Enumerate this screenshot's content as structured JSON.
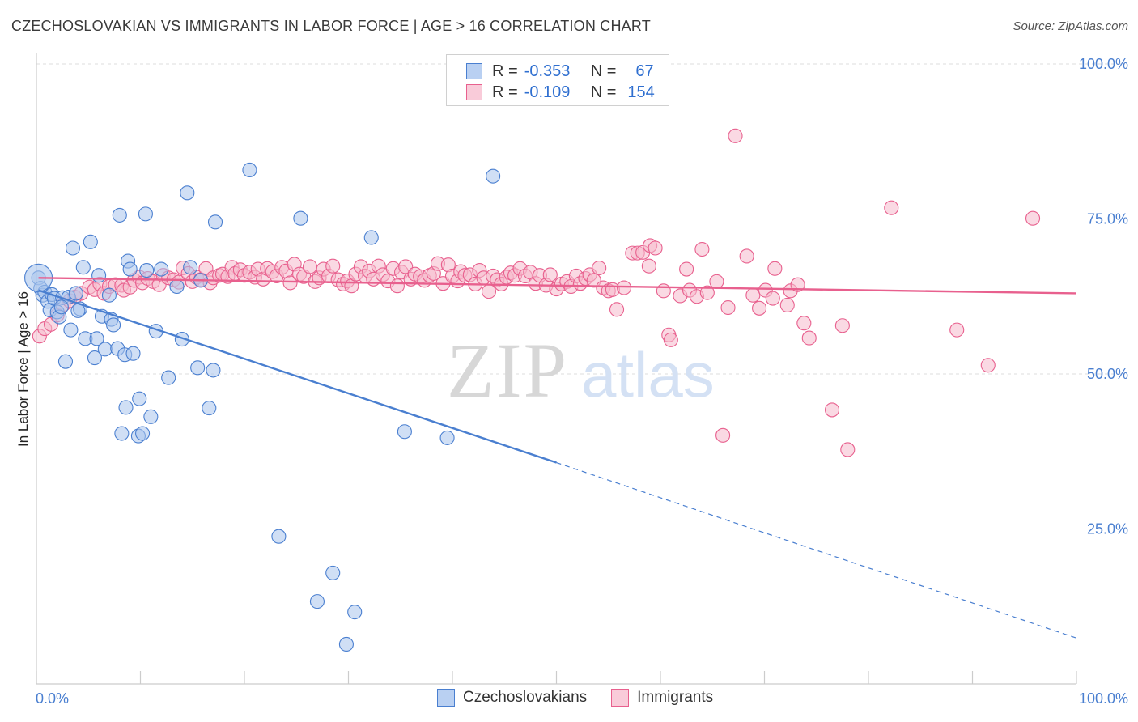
{
  "header": {
    "title": "CZECHOSLOVAKIAN VS IMMIGRANTS IN LABOR FORCE | AGE > 16 CORRELATION CHART",
    "source": "Source: ZipAtlas.com"
  },
  "legend_top": {
    "rows": [
      {
        "r_label": "R =",
        "r_value": "-0.353",
        "n_label": "N =",
        "n_value": "67"
      },
      {
        "r_label": "R =",
        "r_value": "-0.109",
        "n_label": "N =",
        "n_value": "154"
      }
    ]
  },
  "watermark": {
    "zip": "ZIP",
    "atlas": "atlas"
  },
  "colors": {
    "blue": "#4a7fd0",
    "blue_fill": "#a9c4ec",
    "pink": "#e8608e",
    "pink_fill": "#f6b9cc",
    "grid": "#dddddd"
  },
  "chart_data": {
    "type": "scatter",
    "title": "CZECHOSLOVAKIAN VS IMMIGRANTS IN LABOR FORCE | AGE > 16 CORRELATION CHART",
    "xlabel": "",
    "ylabel": "In Labor Force | Age > 16",
    "xlim": [
      0,
      100
    ],
    "ylim": [
      0,
      100
    ],
    "x_tick_labels": [
      "0.0%",
      "100.0%"
    ],
    "y_tick_labels": [
      "25.0%",
      "50.0%",
      "75.0%",
      "100.0%"
    ],
    "y_ticks": [
      25,
      50,
      75,
      100
    ],
    "grid": true,
    "legend_position": "bottom",
    "series": [
      {
        "name": "Czechoslovakians",
        "color": "#4a7fd0",
        "trend": {
          "x_start": 0.2,
          "y_start": 63.5,
          "x_end": 50.0,
          "y_end": 35.7,
          "dashed_x_end": 100.0,
          "dashed_y_end": 7.4
        },
        "points": [
          [
            0.2,
            65.5
          ],
          [
            0.4,
            63.8
          ],
          [
            0.6,
            62.7
          ],
          [
            0.8,
            63.2
          ],
          [
            1.1,
            61.7
          ],
          [
            1.3,
            60.3
          ],
          [
            1.5,
            62.8
          ],
          [
            1.7,
            62.2
          ],
          [
            2.0,
            60.0
          ],
          [
            2.2,
            59.2
          ],
          [
            2.5,
            62.3
          ],
          [
            2.8,
            52.0
          ],
          [
            3.1,
            62.4
          ],
          [
            3.5,
            70.3
          ],
          [
            3.8,
            63.0
          ],
          [
            4.2,
            60.5
          ],
          [
            4.5,
            67.2
          ],
          [
            4.7,
            55.7
          ],
          [
            5.2,
            71.3
          ],
          [
            5.6,
            52.6
          ],
          [
            5.8,
            55.7
          ],
          [
            6.3,
            59.3
          ],
          [
            6.6,
            54.0
          ],
          [
            7.0,
            62.7
          ],
          [
            7.2,
            58.8
          ],
          [
            7.4,
            57.9
          ],
          [
            7.8,
            54.1
          ],
          [
            8.0,
            75.6
          ],
          [
            8.2,
            40.4
          ],
          [
            8.5,
            53.1
          ],
          [
            8.6,
            44.6
          ],
          [
            8.8,
            68.2
          ],
          [
            9.0,
            66.9
          ],
          [
            9.3,
            53.3
          ],
          [
            9.8,
            40.0
          ],
          [
            9.9,
            46.0
          ],
          [
            10.2,
            40.4
          ],
          [
            10.5,
            75.8
          ],
          [
            10.6,
            66.7
          ],
          [
            11.0,
            43.1
          ],
          [
            11.5,
            56.9
          ],
          [
            12.0,
            66.9
          ],
          [
            12.7,
            49.4
          ],
          [
            13.5,
            64.1
          ],
          [
            14.0,
            55.6
          ],
          [
            14.5,
            79.2
          ],
          [
            14.8,
            67.2
          ],
          [
            15.5,
            51.0
          ],
          [
            15.8,
            65.1
          ],
          [
            16.6,
            44.5
          ],
          [
            17.0,
            50.6
          ],
          [
            17.2,
            74.5
          ],
          [
            20.5,
            82.9
          ],
          [
            23.3,
            23.8
          ],
          [
            25.4,
            75.1
          ],
          [
            27.0,
            13.3
          ],
          [
            28.5,
            17.9
          ],
          [
            29.8,
            6.4
          ],
          [
            30.6,
            11.6
          ],
          [
            32.2,
            72.0
          ],
          [
            35.4,
            40.7
          ],
          [
            39.5,
            39.7
          ],
          [
            43.9,
            81.9
          ],
          [
            2.4,
            60.8
          ],
          [
            3.3,
            57.1
          ],
          [
            6.0,
            65.9
          ],
          [
            4.0,
            60.2
          ]
        ]
      },
      {
        "name": "Immigrants",
        "color": "#e8608e",
        "trend": {
          "x_start": 0.2,
          "y_start": 65.5,
          "x_end": 100.0,
          "y_end": 63.0
        },
        "points": [
          [
            0.3,
            56.1
          ],
          [
            0.8,
            57.3
          ],
          [
            1.4,
            58.0
          ],
          [
            2.0,
            59.5
          ],
          [
            2.6,
            61.2
          ],
          [
            3.2,
            61.8
          ],
          [
            3.7,
            62.4
          ],
          [
            4.3,
            63.0
          ],
          [
            5.1,
            64.0
          ],
          [
            5.6,
            63.6
          ],
          [
            6.1,
            64.5
          ],
          [
            6.5,
            63.0
          ],
          [
            7.0,
            64.1
          ],
          [
            7.6,
            64.4
          ],
          [
            8.2,
            64.3
          ],
          [
            8.4,
            63.5
          ],
          [
            9.0,
            64.0
          ],
          [
            9.4,
            65.1
          ],
          [
            9.9,
            65.6
          ],
          [
            10.2,
            64.7
          ],
          [
            10.7,
            65.4
          ],
          [
            11.2,
            64.9
          ],
          [
            11.8,
            64.4
          ],
          [
            12.2,
            65.9
          ],
          [
            12.7,
            65.5
          ],
          [
            13.2,
            65.2
          ],
          [
            13.7,
            64.8
          ],
          [
            14.1,
            67.1
          ],
          [
            14.6,
            66.2
          ],
          [
            15.0,
            64.9
          ],
          [
            15.4,
            65.6
          ],
          [
            15.8,
            65.2
          ],
          [
            16.3,
            67.0
          ],
          [
            16.7,
            64.7
          ],
          [
            17.0,
            65.5
          ],
          [
            17.6,
            65.9
          ],
          [
            17.9,
            66.1
          ],
          [
            18.4,
            65.7
          ],
          [
            18.8,
            67.2
          ],
          [
            19.1,
            66.2
          ],
          [
            19.6,
            66.8
          ],
          [
            20.0,
            65.9
          ],
          [
            20.5,
            66.4
          ],
          [
            21.0,
            65.6
          ],
          [
            21.3,
            66.9
          ],
          [
            21.8,
            65.3
          ],
          [
            22.2,
            67.0
          ],
          [
            22.7,
            66.5
          ],
          [
            23.1,
            65.8
          ],
          [
            23.6,
            67.2
          ],
          [
            24.0,
            66.6
          ],
          [
            24.4,
            64.7
          ],
          [
            24.8,
            67.7
          ],
          [
            25.3,
            66.1
          ],
          [
            25.7,
            65.7
          ],
          [
            26.3,
            67.3
          ],
          [
            26.8,
            64.9
          ],
          [
            27.2,
            65.5
          ],
          [
            27.6,
            66.9
          ],
          [
            28.1,
            65.8
          ],
          [
            28.5,
            67.4
          ],
          [
            29.0,
            65.2
          ],
          [
            29.5,
            64.5
          ],
          [
            29.9,
            65.0
          ],
          [
            30.3,
            64.2
          ],
          [
            30.7,
            66.1
          ],
          [
            31.2,
            67.3
          ],
          [
            31.6,
            65.8
          ],
          [
            32.0,
            66.6
          ],
          [
            32.4,
            65.3
          ],
          [
            32.9,
            67.4
          ],
          [
            33.3,
            66.0
          ],
          [
            33.8,
            65.0
          ],
          [
            34.3,
            67.0
          ],
          [
            34.7,
            64.2
          ],
          [
            35.1,
            66.4
          ],
          [
            35.5,
            67.3
          ],
          [
            36.0,
            65.3
          ],
          [
            36.4,
            66.1
          ],
          [
            36.9,
            65.7
          ],
          [
            37.3,
            65.1
          ],
          [
            37.8,
            65.9
          ],
          [
            38.2,
            66.2
          ],
          [
            38.6,
            67.8
          ],
          [
            39.1,
            64.6
          ],
          [
            39.6,
            67.6
          ],
          [
            40.0,
            65.8
          ],
          [
            40.5,
            65.0
          ],
          [
            40.8,
            66.5
          ],
          [
            41.2,
            65.9
          ],
          [
            41.7,
            66.0
          ],
          [
            42.2,
            64.5
          ],
          [
            42.6,
            66.7
          ],
          [
            43.0,
            65.5
          ],
          [
            43.5,
            63.3
          ],
          [
            43.9,
            65.8
          ],
          [
            44.3,
            65.2
          ],
          [
            44.7,
            64.5
          ],
          [
            45.2,
            65.6
          ],
          [
            45.6,
            66.3
          ],
          [
            46.0,
            65.9
          ],
          [
            46.5,
            67.0
          ],
          [
            47.0,
            65.8
          ],
          [
            47.5,
            66.4
          ],
          [
            48.0,
            64.6
          ],
          [
            48.4,
            65.9
          ],
          [
            49.0,
            64.3
          ],
          [
            49.4,
            66.0
          ],
          [
            50.0,
            63.7
          ],
          [
            50.5,
            64.5
          ],
          [
            51.0,
            64.9
          ],
          [
            51.4,
            64.1
          ],
          [
            51.9,
            65.8
          ],
          [
            52.3,
            64.6
          ],
          [
            52.8,
            65.4
          ],
          [
            53.2,
            66.0
          ],
          [
            53.6,
            65.1
          ],
          [
            54.1,
            67.1
          ],
          [
            54.5,
            63.9
          ],
          [
            55.0,
            63.4
          ],
          [
            55.4,
            63.6
          ],
          [
            55.8,
            60.4
          ],
          [
            56.5,
            63.9
          ],
          [
            57.3,
            69.5
          ],
          [
            57.8,
            69.5
          ],
          [
            58.3,
            69.6
          ],
          [
            58.9,
            67.4
          ],
          [
            59.0,
            70.7
          ],
          [
            59.5,
            70.3
          ],
          [
            60.3,
            63.4
          ],
          [
            60.8,
            56.3
          ],
          [
            61.0,
            55.5
          ],
          [
            61.9,
            62.6
          ],
          [
            62.5,
            66.9
          ],
          [
            62.8,
            63.5
          ],
          [
            63.5,
            62.5
          ],
          [
            64.0,
            70.1
          ],
          [
            64.5,
            63.1
          ],
          [
            65.4,
            64.9
          ],
          [
            66.5,
            60.7
          ],
          [
            67.2,
            88.4
          ],
          [
            68.3,
            69.0
          ],
          [
            68.9,
            62.7
          ],
          [
            69.5,
            60.6
          ],
          [
            70.1,
            63.5
          ],
          [
            70.8,
            62.2
          ],
          [
            71.0,
            67.0
          ],
          [
            72.2,
            61.1
          ],
          [
            72.5,
            63.4
          ],
          [
            73.2,
            64.4
          ],
          [
            73.8,
            58.2
          ],
          [
            74.3,
            55.8
          ],
          [
            76.5,
            44.2
          ],
          [
            77.5,
            57.8
          ],
          [
            78.0,
            37.8
          ],
          [
            82.2,
            76.8
          ],
          [
            88.5,
            57.1
          ],
          [
            91.5,
            51.4
          ],
          [
            95.8,
            75.1
          ],
          [
            66.0,
            40.1
          ]
        ]
      }
    ]
  }
}
